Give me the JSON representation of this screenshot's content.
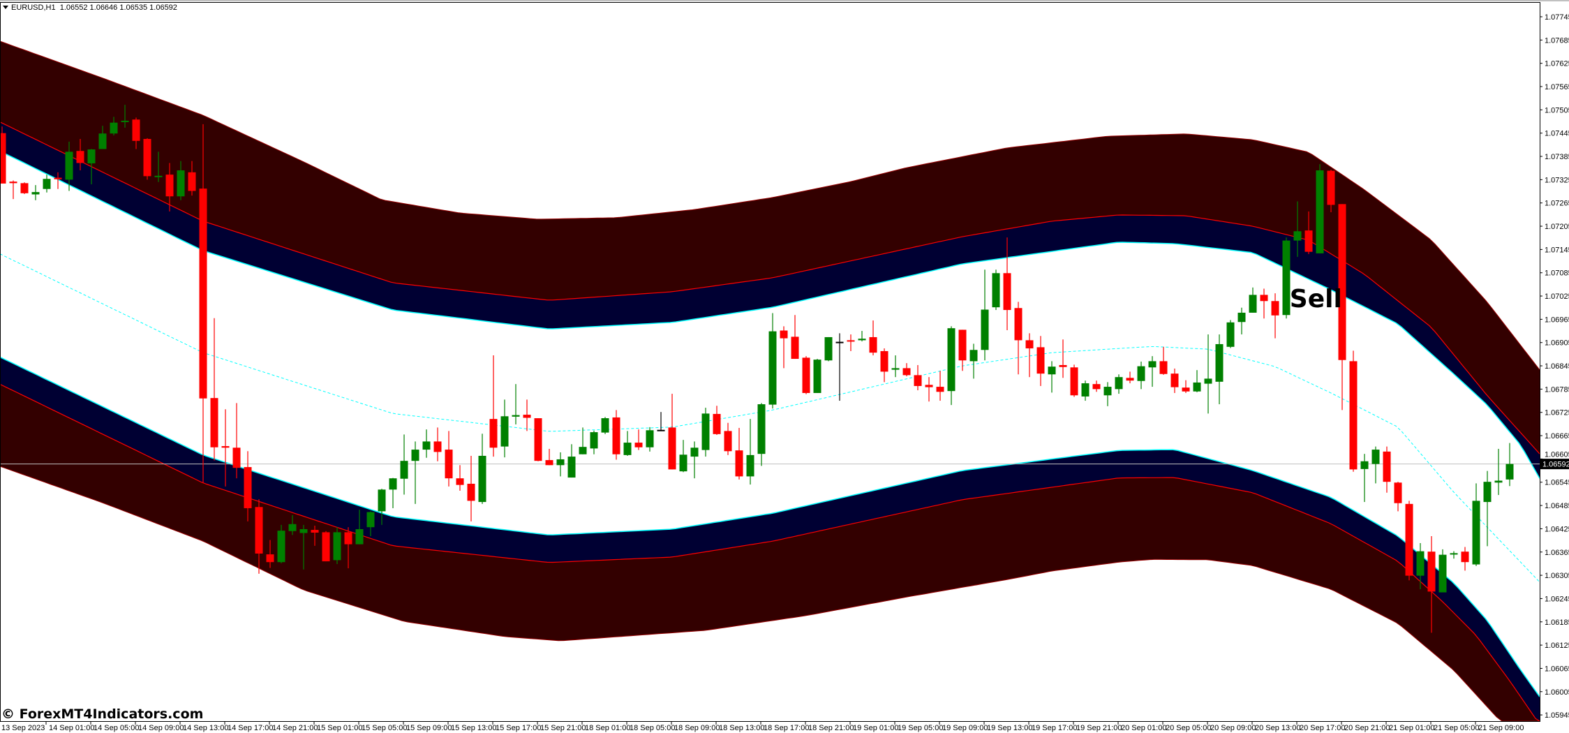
{
  "window": {
    "symbol_timeframe": "EURUSD,H1",
    "ohlc_header": "1.06552 1.06646 1.06535 1.06592"
  },
  "watermark": "© ForexMT4Indicators.com",
  "colors": {
    "background": "#ffffff",
    "bull_candle": "#008000",
    "bear_candle": "#ff0000",
    "doji_candle": "#000000",
    "outer_band_fill": "#330000",
    "inner_band_fill": "#000033",
    "red_line": "#ff0000",
    "cyan_line": "#00ffff",
    "current_price_line": "#c0c0c0"
  },
  "chart_data": {
    "type": "candlestick",
    "title": "EURUSD,H1",
    "ylim": [
      1.05929,
      1.07781
    ],
    "grid": false,
    "current_price": 1.06592,
    "current_price_label": "1.06592",
    "y_ticks": [
      "1.07745",
      "1.07685",
      "1.07625",
      "1.07565",
      "1.07505",
      "1.07445",
      "1.07385",
      "1.07325",
      "1.07265",
      "1.07205",
      "1.07145",
      "1.07085",
      "1.07025",
      "1.06965",
      "1.06905",
      "1.06845",
      "1.06785",
      "1.06725",
      "1.06665",
      "1.06605",
      "1.06545",
      "1.06485",
      "1.06425",
      "1.06365",
      "1.06305",
      "1.06245",
      "1.06185",
      "1.06125",
      "1.06065",
      "1.06005",
      "1.05945"
    ],
    "x_ticks": [
      "13 Sep 2023",
      "14 Sep 01:00",
      "14 Sep 05:00",
      "14 Sep 09:00",
      "14 Sep 13:00",
      "14 Sep 17:00",
      "14 Sep 21:00",
      "15 Sep 01:00",
      "15 Sep 05:00",
      "15 Sep 09:00",
      "15 Sep 13:00",
      "15 Sep 17:00",
      "15 Sep 21:00",
      "18 Sep 01:00",
      "18 Sep 05:00",
      "18 Sep 09:00",
      "18 Sep 13:00",
      "18 Sep 17:00",
      "18 Sep 21:00",
      "19 Sep 01:00",
      "19 Sep 05:00",
      "19 Sep 09:00",
      "19 Sep 13:00",
      "19 Sep 17:00",
      "19 Sep 21:00",
      "20 Sep 01:00",
      "20 Sep 05:00",
      "20 Sep 09:00",
      "20 Sep 13:00",
      "20 Sep 17:00",
      "20 Sep 21:00",
      "21 Sep 01:00",
      "21 Sep 05:00",
      "21 Sep 09:00"
    ],
    "open": [
      1.07445,
      1.0732,
      1.07316,
      1.07287,
      1.07301,
      1.0733,
      1.07325,
      1.07399,
      1.07367,
      1.07404,
      1.07444,
      1.07474,
      1.0748,
      1.0743,
      1.07333,
      1.07338,
      1.07282,
      1.07344,
      1.07302,
      1.06762,
      1.06638,
      1.06634,
      1.06584,
      1.06481,
      1.06359,
      1.06339,
      1.06419,
      1.06414,
      1.06422,
      1.06416,
      1.06344,
      1.06416,
      1.06385,
      1.06429,
      1.0647,
      1.06526,
      1.06554,
      1.066,
      1.06629,
      1.0665,
      1.06629,
      1.06555,
      1.06541,
      1.06494,
      1.06708,
      1.06637,
      1.06714,
      1.06719,
      1.0671,
      1.06602,
      1.06589,
      1.06557,
      1.06617,
      1.06632,
      1.06673,
      1.06712,
      1.06615,
      1.06647,
      1.06635,
      1.0668,
      1.06686,
      1.06573,
      1.06611,
      1.06628,
      1.06721,
      1.06677,
      1.06627,
      1.0656,
      1.06618,
      1.06745,
      1.06936,
      1.0692,
      1.06866,
      1.06775,
      1.06859,
      1.06907,
      1.06911,
      1.06911,
      1.06919,
      1.06883,
      1.06835,
      1.06839,
      1.06821,
      1.06796,
      1.06791,
      1.0678,
      1.06938,
      1.06857,
      1.06886,
      1.06996,
      1.07084,
      1.06994,
      1.06911,
      1.06893,
      1.06823,
      1.06847,
      1.06841,
      1.06766,
      1.06798,
      1.06769,
      1.06785,
      1.06814,
      1.06806,
      1.06841,
      1.06857,
      1.06825,
      1.06789,
      1.06779,
      1.06799,
      1.06804,
      1.06894,
      1.06958,
      1.06982,
      1.07028,
      1.07012,
      1.06976,
      1.07168,
      1.07194,
      1.07135,
      1.07348,
      1.07262,
      1.06857,
      1.06579,
      1.06592,
      1.06624,
      1.06544,
      1.06489,
      1.06304,
      1.06366,
      1.06261,
      1.06359,
      1.06366,
      1.06333,
      1.06494,
      1.06544,
      1.06552
    ],
    "high": [
      1.07462,
      1.07323,
      1.07318,
      1.07311,
      1.07338,
      1.07344,
      1.07423,
      1.0743,
      1.07404,
      1.07464,
      1.07487,
      1.07518,
      1.07485,
      1.07432,
      1.07397,
      1.07368,
      1.07373,
      1.07373,
      1.07468,
      1.06968,
      1.06733,
      1.06749,
      1.06625,
      1.06501,
      1.06396,
      1.06435,
      1.0646,
      1.06435,
      1.06433,
      1.06419,
      1.06429,
      1.06429,
      1.06474,
      1.0647,
      1.06528,
      1.06556,
      1.06668,
      1.0665,
      1.06681,
      1.06686,
      1.06677,
      1.06589,
      1.06613,
      1.0667,
      1.06872,
      1.06758,
      1.06798,
      1.06758,
      1.0671,
      1.06631,
      1.06622,
      1.06643,
      1.06686,
      1.06678,
      1.06713,
      1.06731,
      1.06677,
      1.06681,
      1.06687,
      1.06726,
      1.06773,
      1.06654,
      1.0665,
      1.06737,
      1.06742,
      1.06698,
      1.06685,
      1.06708,
      1.06749,
      1.06981,
      1.06947,
      1.06976,
      1.0687,
      1.06863,
      1.06919,
      1.06929,
      1.06926,
      1.06935,
      1.06962,
      1.0689,
      1.06872,
      1.06852,
      1.06847,
      1.06816,
      1.06832,
      1.06947,
      1.06938,
      1.06902,
      1.07093,
      1.07093,
      1.07176,
      1.0701,
      1.06929,
      1.06922,
      1.06857,
      1.06913,
      1.06848,
      1.06807,
      1.06807,
      1.06803,
      1.06823,
      1.0683,
      1.06856,
      1.0687,
      1.06894,
      1.06838,
      1.06808,
      1.06834,
      1.06926,
      1.06926,
      1.06963,
      1.06995,
      1.07047,
      1.07044,
      1.07032,
      1.07176,
      1.07269,
      1.07243,
      1.07365,
      1.07351,
      1.07262,
      1.06884,
      1.06618,
      1.06637,
      1.06637,
      1.06546,
      1.06497,
      1.06388,
      1.06406,
      1.06372,
      1.06367,
      1.06378,
      1.06542,
      1.06574,
      1.06631,
      1.06646
    ],
    "low": [
      1.07315,
      1.07275,
      1.07288,
      1.07272,
      1.07292,
      1.07301,
      1.07296,
      1.07349,
      1.07313,
      1.07404,
      1.07439,
      1.07459,
      1.07404,
      1.07325,
      1.07319,
      1.07243,
      1.07272,
      1.07284,
      1.06544,
      1.06601,
      1.06534,
      1.06555,
      1.06444,
      1.06309,
      1.06324,
      1.06336,
      1.06409,
      1.0632,
      1.06381,
      1.06341,
      1.06334,
      1.06323,
      1.06385,
      1.06406,
      1.06435,
      1.06478,
      1.06513,
      1.06489,
      1.06608,
      1.06599,
      1.06534,
      1.06523,
      1.06444,
      1.06489,
      1.06611,
      1.06609,
      1.06694,
      1.06677,
      1.06599,
      1.06589,
      1.0656,
      1.06557,
      1.06617,
      1.06617,
      1.06669,
      1.06603,
      1.06613,
      1.06628,
      1.06624,
      1.06677,
      1.06578,
      1.06571,
      1.06555,
      1.06611,
      1.06667,
      1.06615,
      1.06552,
      1.06539,
      1.06587,
      1.06735,
      1.06839,
      1.06863,
      1.06772,
      1.06775,
      1.06857,
      1.06755,
      1.06883,
      1.06908,
      1.06872,
      1.06803,
      1.06816,
      1.06818,
      1.06782,
      1.06753,
      1.06755,
      1.06744,
      1.06832,
      1.06812,
      1.06859,
      1.06989,
      1.06937,
      1.06823,
      1.06816,
      1.06793,
      1.06776,
      1.06814,
      1.06765,
      1.06755,
      1.06778,
      1.06741,
      1.06773,
      1.068,
      1.06785,
      1.06791,
      1.06822,
      1.06775,
      1.06775,
      1.06777,
      1.06722,
      1.06746,
      1.06891,
      1.06926,
      1.06982,
      1.06967,
      1.06916,
      1.06967,
      1.07126,
      1.07133,
      1.07135,
      1.07241,
      1.06731,
      1.06572,
      1.06494,
      1.06542,
      1.06518,
      1.0647,
      1.06292,
      1.06269,
      1.06157,
      1.06261,
      1.06348,
      1.06317,
      1.06329,
      1.0638,
      1.06512,
      1.06535
    ],
    "close": [
      1.07315,
      1.07316,
      1.0729,
      1.07293,
      1.07327,
      1.07326,
      1.07397,
      1.07368,
      1.07403,
      1.07444,
      1.07472,
      1.07477,
      1.07425,
      1.07334,
      1.07335,
      1.07282,
      1.07349,
      1.07296,
      1.06761,
      1.06635,
      1.06634,
      1.06582,
      1.06478,
      1.06361,
      1.06339,
      1.0642,
      1.06437,
      1.06424,
      1.06415,
      1.06341,
      1.06416,
      1.06385,
      1.06424,
      1.06468,
      1.06526,
      1.06555,
      1.066,
      1.06629,
      1.0665,
      1.06623,
      1.06555,
      1.06538,
      1.06497,
      1.06613,
      1.06634,
      1.06715,
      1.06718,
      1.06711,
      1.066,
      1.06589,
      1.06604,
      1.06611,
      1.06636,
      1.06674,
      1.0671,
      1.06617,
      1.06647,
      1.06635,
      1.06679,
      1.0668,
      1.06578,
      1.06616,
      1.06634,
      1.06722,
      1.06669,
      1.06625,
      1.0656,
      1.06615,
      1.06746,
      1.06934,
      1.06916,
      1.06863,
      1.06775,
      1.06861,
      1.06919,
      1.06907,
      1.06909,
      1.06915,
      1.06879,
      1.0683,
      1.06839,
      1.06821,
      1.06793,
      1.0679,
      1.06778,
      1.06942,
      1.06859,
      1.06886,
      1.0699,
      1.07084,
      1.06989,
      1.06911,
      1.0689,
      1.06825,
      1.06843,
      1.06842,
      1.06769,
      1.068,
      1.06785,
      1.06791,
      1.06816,
      1.06807,
      1.06844,
      1.06857,
      1.06824,
      1.0679,
      1.06779,
      1.06802,
      1.06812,
      1.06901,
      1.06957,
      1.06982,
      1.07028,
      1.07012,
      1.06975,
      1.07168,
      1.07192,
      1.07139,
      1.07349,
      1.0726,
      1.0686,
      1.06578,
      1.06599,
      1.06629,
      1.06546,
      1.06491,
      1.06304,
      1.06367,
      1.06263,
      1.06358,
      1.06362,
      1.06339,
      1.06497,
      1.06546,
      1.06549,
      1.06592
    ],
    "bands": {
      "upper_outer": [
        [
          0,
          1.0768
        ],
        [
          9,
          1.07587
        ],
        [
          18,
          1.07491
        ],
        [
          27,
          1.07371
        ],
        [
          34,
          1.07273
        ],
        [
          41,
          1.07239
        ],
        [
          48,
          1.07223
        ],
        [
          55,
          1.07227
        ],
        [
          62,
          1.07248
        ],
        [
          69,
          1.07279
        ],
        [
          76,
          1.0732
        ],
        [
          81,
          1.07356
        ],
        [
          90,
          1.07407
        ],
        [
          99,
          1.07437
        ],
        [
          106,
          1.07443
        ],
        [
          112,
          1.07428
        ],
        [
          117,
          1.07396
        ],
        [
          122,
          1.07299
        ],
        [
          128,
          1.07169
        ],
        [
          133,
          1.07009
        ],
        [
          138,
          1.06823
        ]
      ],
      "upper_red": [
        [
          0,
          1.07471
        ],
        [
          18,
          1.07218
        ],
        [
          35,
          1.07059
        ],
        [
          49,
          1.07014
        ],
        [
          60,
          1.07036
        ],
        [
          69,
          1.07072
        ],
        [
          86,
          1.07178
        ],
        [
          94,
          1.07218
        ],
        [
          100,
          1.07234
        ],
        [
          106,
          1.07232
        ],
        [
          112,
          1.07205
        ],
        [
          117,
          1.07169
        ],
        [
          122,
          1.07081
        ],
        [
          128,
          1.06944
        ],
        [
          133,
          1.06768
        ],
        [
          138,
          1.06608
        ]
      ],
      "upper_cyan": [
        [
          0,
          1.07396
        ],
        [
          18,
          1.07142
        ],
        [
          35,
          1.06989
        ],
        [
          49,
          1.0694
        ],
        [
          60,
          1.06957
        ],
        [
          69,
          1.06996
        ],
        [
          86,
          1.07108
        ],
        [
          100,
          1.07164
        ],
        [
          105,
          1.0716
        ],
        [
          112,
          1.07137
        ],
        [
          119,
          1.07041
        ],
        [
          125,
          1.06953
        ],
        [
          130,
          1.06824
        ],
        [
          133,
          1.06744
        ],
        [
          136,
          1.0664
        ],
        [
          138,
          1.06539
        ]
      ],
      "middle": [
        [
          0,
          1.07131
        ],
        [
          18,
          1.06879
        ],
        [
          35,
          1.06722
        ],
        [
          49,
          1.06676
        ],
        [
          60,
          1.06687
        ],
        [
          69,
          1.06731
        ],
        [
          86,
          1.06845
        ],
        [
          94,
          1.06879
        ],
        [
          103,
          1.06895
        ],
        [
          108,
          1.06888
        ],
        [
          114,
          1.06843
        ],
        [
          119,
          1.06775
        ],
        [
          125,
          1.06687
        ],
        [
          130,
          1.06519
        ],
        [
          138,
          1.06278
        ]
      ],
      "lower_cyan": [
        [
          0,
          1.06865
        ],
        [
          18,
          1.06615
        ],
        [
          35,
          1.06456
        ],
        [
          49,
          1.06409
        ],
        [
          60,
          1.06424
        ],
        [
          69,
          1.06465
        ],
        [
          86,
          1.06575
        ],
        [
          100,
          1.06627
        ],
        [
          105,
          1.06629
        ],
        [
          112,
          1.06575
        ],
        [
          119,
          1.06506
        ],
        [
          125,
          1.06406
        ],
        [
          130,
          1.06285
        ],
        [
          133,
          1.06188
        ],
        [
          136,
          1.0606
        ],
        [
          138,
          1.05979
        ]
      ],
      "lower_red": [
        [
          0,
          1.06795
        ],
        [
          18,
          1.06543
        ],
        [
          35,
          1.06381
        ],
        [
          49,
          1.06338
        ],
        [
          60,
          1.06352
        ],
        [
          69,
          1.06393
        ],
        [
          86,
          1.065
        ],
        [
          100,
          1.06556
        ],
        [
          105,
          1.06557
        ],
        [
          112,
          1.06518
        ],
        [
          119,
          1.06438
        ],
        [
          125,
          1.06341
        ],
        [
          129,
          1.06237
        ],
        [
          132,
          1.0615
        ],
        [
          135,
          1.06033
        ],
        [
          138,
          1.05907
        ]
      ],
      "lower_outer": [
        [
          0,
          1.06584
        ],
        [
          9,
          1.06492
        ],
        [
          18,
          1.06393
        ],
        [
          27,
          1.06267
        ],
        [
          36,
          1.06186
        ],
        [
          45,
          1.06147
        ],
        [
          50,
          1.06136
        ],
        [
          63,
          1.06163
        ],
        [
          72,
          1.06201
        ],
        [
          81,
          1.06249
        ],
        [
          90,
          1.06294
        ],
        [
          94,
          1.06316
        ],
        [
          100,
          1.06339
        ],
        [
          103,
          1.06346
        ],
        [
          108,
          1.06345
        ],
        [
          112,
          1.0633
        ],
        [
          119,
          1.06269
        ],
        [
          125,
          1.06181
        ],
        [
          130,
          1.0606
        ],
        [
          134,
          1.05934
        ],
        [
          138,
          1.05808
        ]
      ]
    },
    "annotations": [
      {
        "text": "Sell",
        "bar": 115.3,
        "price": 1.06996
      }
    ]
  }
}
